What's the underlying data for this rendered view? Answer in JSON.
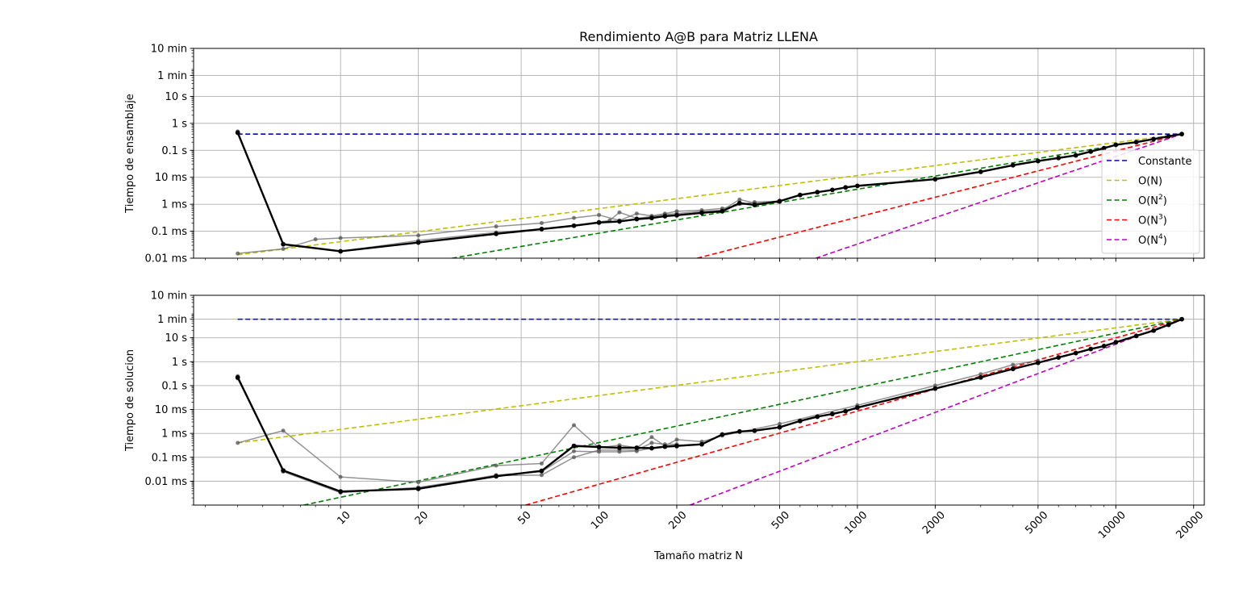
{
  "chart_data": [
    {
      "type": "line",
      "title": "Rendimiento A@B para Matriz LLENA",
      "xlabel": "",
      "ylabel": "Tiempo de ensamblaje",
      "x_scale": "log",
      "y_scale": "log",
      "y_unit": "seconds",
      "xlim": [
        2.7,
        22000
      ],
      "ylim": [
        1e-05,
        600
      ],
      "grid": true,
      "y_ticks": [
        {
          "value": 600,
          "label": "10 min"
        },
        {
          "value": 60,
          "label": "1 min"
        },
        {
          "value": 10,
          "label": "10 s"
        },
        {
          "value": 1,
          "label": "1 s"
        },
        {
          "value": 0.1,
          "label": "0.1 s"
        },
        {
          "value": 0.01,
          "label": "10 ms"
        },
        {
          "value": 0.001,
          "label": "1 ms"
        },
        {
          "value": 0.0001,
          "label": "0.1 ms"
        },
        {
          "value": 1e-05,
          "label": "0.01 ms"
        }
      ],
      "reference_lines": [
        {
          "name": "Constante",
          "color": "#0000cc",
          "points": [
            [
              4,
              0.4
            ],
            [
              18000,
              0.4
            ]
          ]
        },
        {
          "name": "O(N)",
          "color": "#bfbf00",
          "points": [
            [
              4,
              1.33e-05
            ],
            [
              18000,
              0.4
            ]
          ]
        },
        {
          "name": "O(N²)",
          "color": "#008000",
          "points": [
            [
              27,
              1e-05
            ],
            [
              18000,
              0.4
            ]
          ]
        },
        {
          "name": "O(N³)",
          "color": "#ff0000",
          "points": [
            [
              240,
              1e-05
            ],
            [
              18000,
              0.4
            ]
          ]
        },
        {
          "name": "O(N⁴)",
          "color": "#bf00bf",
          "points": [
            [
              690,
              1e-05
            ],
            [
              18000,
              0.4
            ]
          ]
        }
      ],
      "legend": {
        "position": "right",
        "entries": [
          {
            "label": "Constante",
            "color": "#0000cc"
          },
          {
            "label": "O(N)",
            "color": "#bfbf00"
          },
          {
            "label": "O(N",
            "sup": "2",
            "close": ")",
            "color": "#008000"
          },
          {
            "label": "O(N",
            "sup": "3",
            "close": ")",
            "color": "#ff0000"
          },
          {
            "label": "O(N",
            "sup": "4",
            "close": ")",
            "color": "#bf00bf"
          }
        ]
      },
      "series": [
        {
          "role": "run",
          "x": [
            4,
            6,
            8,
            10,
            20,
            40,
            60,
            80,
            100,
            120,
            140,
            160,
            180,
            200,
            250,
            300,
            400,
            500
          ],
          "y": [
            1.5e-05,
            2.2e-05,
            5e-05,
            5.6e-05,
            7e-05,
            0.00015,
            0.0002,
            0.00031,
            0.0004,
            0.00025,
            0.00045,
            0.00037,
            0.00045,
            0.00055,
            0.0006,
            0.0007,
            0.0012,
            0.0013
          ]
        },
        {
          "role": "run",
          "x": [
            4,
            6,
            10,
            20,
            40,
            60,
            80,
            100,
            110,
            120,
            140,
            160,
            180,
            200,
            250,
            300,
            350,
            400,
            500
          ],
          "y": [
            0.5,
            3.2e-05,
            1.8e-05,
            4.5e-05,
            9e-05,
            0.00012,
            0.00016,
            0.00022,
            0.00025,
            0.0005,
            0.0003,
            0.00035,
            0.00042,
            0.00045,
            0.00055,
            0.0006,
            0.0015,
            0.0011,
            0.0012
          ]
        },
        {
          "role": "mean",
          "x": [
            4,
            6,
            10,
            20,
            40,
            60,
            80,
            100,
            120,
            140,
            160,
            180,
            200,
            250,
            300,
            350,
            400,
            500,
            600,
            700,
            800,
            900,
            1000,
            2000,
            3000,
            4000,
            5000,
            6000,
            7000,
            8000,
            9000,
            10000,
            12000,
            14000,
            16000,
            18000
          ],
          "y": [
            0.45,
            3.3e-05,
            1.8e-05,
            3.8e-05,
            8e-05,
            0.00012,
            0.00016,
            0.00021,
            0.00023,
            0.00028,
            0.00031,
            0.00036,
            0.00039,
            0.00048,
            0.00055,
            0.0011,
            0.00095,
            0.0013,
            0.0022,
            0.0028,
            0.0034,
            0.0042,
            0.0048,
            0.0085,
            0.016,
            0.028,
            0.04,
            0.052,
            0.065,
            0.09,
            0.12,
            0.16,
            0.2,
            0.26,
            0.33,
            0.4
          ]
        }
      ]
    },
    {
      "type": "line",
      "title": "",
      "xlabel": "Tamaño matriz N",
      "ylabel": "Tiempo de solucion",
      "x_scale": "log",
      "y_scale": "log",
      "y_unit": "seconds",
      "xlim": [
        2.7,
        22000
      ],
      "ylim": [
        1e-06,
        600
      ],
      "grid": true,
      "x_ticks": [
        {
          "value": 10,
          "label": "10"
        },
        {
          "value": 20,
          "label": "20"
        },
        {
          "value": 50,
          "label": "50"
        },
        {
          "value": 100,
          "label": "100"
        },
        {
          "value": 200,
          "label": "200"
        },
        {
          "value": 500,
          "label": "500"
        },
        {
          "value": 1000,
          "label": "1000"
        },
        {
          "value": 2000,
          "label": "2000"
        },
        {
          "value": 5000,
          "label": "5000"
        },
        {
          "value": 10000,
          "label": "10000"
        },
        {
          "value": 20000,
          "label": "20000"
        }
      ],
      "y_ticks": [
        {
          "value": 600,
          "label": "10 min"
        },
        {
          "value": 60,
          "label": "1 min"
        },
        {
          "value": 10,
          "label": "10 s"
        },
        {
          "value": 1,
          "label": "1 s"
        },
        {
          "value": 0.1,
          "label": "0.1 s"
        },
        {
          "value": 0.01,
          "label": "10 ms"
        },
        {
          "value": 0.001,
          "label": "1 ms"
        },
        {
          "value": 0.0001,
          "label": "0.1 ms"
        },
        {
          "value": 1e-05,
          "label": "0.01 ms"
        }
      ],
      "reference_lines": [
        {
          "name": "Constante",
          "color": "#0000cc",
          "points": [
            [
              4,
              60
            ],
            [
              18000,
              60
            ]
          ]
        },
        {
          "name": "O(N)",
          "color": "#bfbf00",
          "points": [
            [
              4,
              0.0004
            ],
            [
              18000,
              60
            ]
          ]
        },
        {
          "name": "O(N²)",
          "color": "#008000",
          "points": [
            [
              7.2,
              1e-06
            ],
            [
              18000,
              60
            ]
          ]
        },
        {
          "name": "O(N³)",
          "color": "#ff0000",
          "points": [
            [
              52,
              1e-06
            ],
            [
              18000,
              60
            ]
          ]
        },
        {
          "name": "O(N⁴)",
          "color": "#bf00bf",
          "points": [
            [
              225,
              1e-06
            ],
            [
              18000,
              60
            ]
          ]
        }
      ],
      "series": [
        {
          "role": "run",
          "x": [
            4,
            6,
            10,
            20,
            40,
            60,
            80,
            100,
            120,
            140,
            160,
            180,
            200,
            250,
            300,
            500,
            1000,
            2000,
            3000,
            4000,
            5000
          ],
          "y": [
            0.0004,
            0.0013,
            1.5e-05,
            9e-06,
            4.5e-05,
            5.5e-05,
            0.0022,
            0.00025,
            0.00032,
            0.00025,
            0.0007,
            0.0003,
            0.00055,
            0.00045,
            0.0008,
            0.0025,
            0.015,
            0.1,
            0.3,
            0.75,
            1.1
          ]
        },
        {
          "role": "run",
          "x": [
            4,
            6,
            10,
            20,
            40,
            60,
            80,
            100,
            120,
            140,
            160,
            180,
            200
          ],
          "y": [
            0.25,
            2.5e-05,
            3.3e-06,
            5.5e-06,
            1.7e-05,
            1.8e-05,
            0.0001,
            0.0002,
            0.0002,
            0.0002,
            0.0004,
            0.00035,
            0.00035
          ]
        },
        {
          "role": "run",
          "x": [
            4,
            6,
            10,
            20,
            40,
            60,
            80,
            100,
            120,
            140,
            160,
            180,
            200
          ],
          "y": [
            0.2,
            2.8e-05,
            3.5e-06,
            5e-06,
            1.8e-05,
            2.5e-05,
            0.00018,
            0.00017,
            0.00017,
            0.00018,
            0.00025,
            0.00027,
            0.00028
          ]
        },
        {
          "role": "mean",
          "x": [
            4,
            6,
            10,
            20,
            40,
            60,
            80,
            100,
            120,
            140,
            160,
            180,
            200,
            250,
            300,
            350,
            400,
            500,
            600,
            700,
            800,
            900,
            1000,
            2000,
            3000,
            4000,
            5000,
            6000,
            7000,
            8000,
            9000,
            10000,
            12000,
            14000,
            16000,
            18000
          ],
          "y": [
            0.22,
            2.8e-05,
            3.7e-06,
            4.8e-06,
            1.6e-05,
            2.7e-05,
            0.0003,
            0.00027,
            0.00025,
            0.00025,
            0.00024,
            0.00028,
            0.0003,
            0.00035,
            0.0009,
            0.0012,
            0.0013,
            0.0018,
            0.0033,
            0.005,
            0.0065,
            0.0085,
            0.012,
            0.075,
            0.22,
            0.5,
            0.9,
            1.5,
            2.3,
            3.4,
            4.5,
            6.5,
            12,
            20,
            35,
            60
          ]
        }
      ]
    }
  ]
}
